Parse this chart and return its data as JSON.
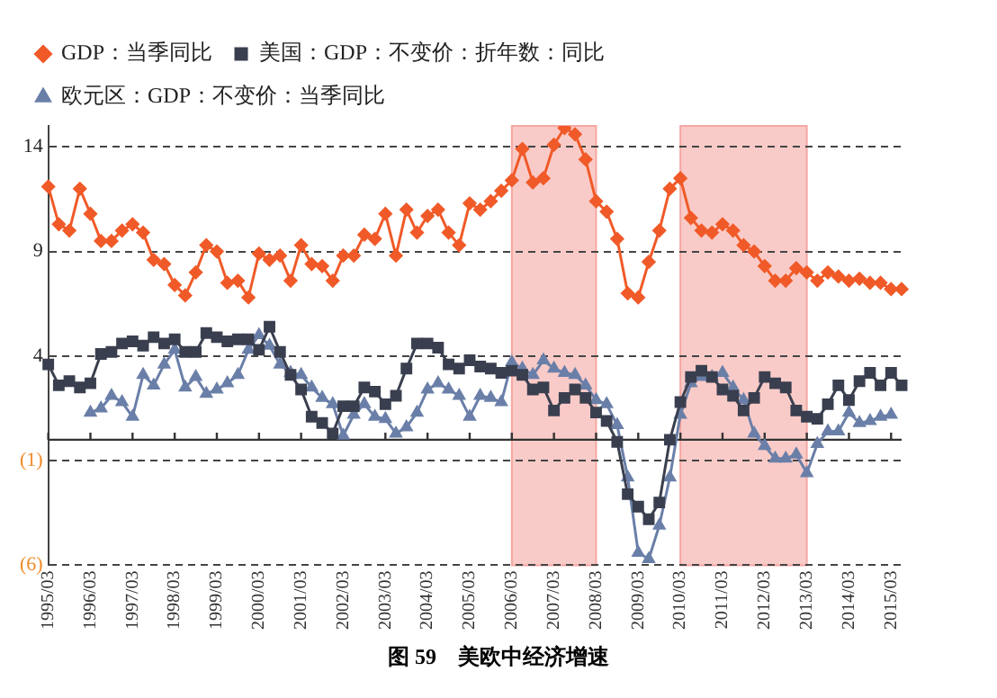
{
  "chart_data": {
    "type": "line",
    "annotations": [
      "图 59　美欧中经济增速"
    ],
    "categories": [
      "1995/03",
      null,
      null,
      null,
      "1996/03",
      null,
      null,
      null,
      "1997/03",
      null,
      null,
      null,
      "1998/03",
      null,
      null,
      null,
      "1999/03",
      null,
      null,
      null,
      "2000/03",
      null,
      null,
      null,
      "2001/03",
      null,
      null,
      null,
      "2002/03",
      null,
      null,
      null,
      "2003/03",
      null,
      null,
      null,
      "2004/03",
      null,
      null,
      null,
      "2005/03",
      null,
      null,
      null,
      "2006/03",
      null,
      null,
      null,
      "2007/03",
      null,
      null,
      null,
      "2008/03",
      null,
      null,
      null,
      "2009/03",
      null,
      null,
      null,
      "2010/03",
      null,
      null,
      null,
      "2011/03",
      null,
      null,
      null,
      "2012/03",
      null,
      null,
      null,
      "2013/03",
      null,
      null,
      null,
      "2014/03",
      null,
      null,
      null,
      "2015/03",
      null
    ],
    "series": [
      {
        "name": "GDP：当季同比",
        "color": "#f05a28",
        "marker": "diamond",
        "values": [
          12.1,
          10.3,
          10.0,
          12.0,
          10.8,
          9.5,
          9.5,
          10.0,
          10.3,
          9.9,
          8.6,
          8.4,
          7.4,
          6.9,
          8.0,
          9.3,
          9.0,
          7.5,
          7.6,
          6.8,
          8.9,
          8.6,
          8.8,
          7.6,
          9.3,
          8.4,
          8.3,
          7.6,
          8.8,
          8.8,
          9.8,
          9.6,
          10.8,
          8.8,
          11.0,
          9.9,
          10.7,
          11.0,
          9.9,
          9.3,
          11.3,
          11.0,
          11.4,
          11.9,
          12.4,
          13.9,
          12.3,
          12.5,
          14.1,
          14.9,
          14.6,
          13.4,
          11.4,
          10.9,
          9.6,
          7.0,
          6.8,
          8.5,
          10.0,
          12.0,
          12.5,
          10.6,
          10.0,
          9.9,
          10.3,
          10.0,
          9.3,
          9.0,
          8.3,
          7.6,
          7.6,
          8.2,
          8.0,
          7.6,
          8.0,
          7.8,
          7.6,
          7.7,
          7.5,
          7.5,
          7.2,
          7.2
        ]
      },
      {
        "name": "美国：GDP：不变价：折年数：同比",
        "color": "#3a3f4f",
        "marker": "square",
        "values": [
          3.6,
          2.6,
          2.8,
          2.5,
          2.7,
          4.1,
          4.2,
          4.6,
          4.7,
          4.5,
          4.9,
          4.6,
          4.8,
          4.2,
          4.2,
          5.1,
          4.9,
          4.7,
          4.8,
          4.8,
          4.3,
          5.4,
          4.2,
          3.1,
          2.4,
          1.1,
          0.8,
          0.3,
          1.6,
          1.6,
          2.5,
          2.3,
          1.7,
          2.1,
          3.4,
          4.6,
          4.6,
          4.4,
          3.6,
          3.4,
          3.8,
          3.5,
          3.4,
          3.2,
          3.3,
          3.1,
          2.4,
          2.5,
          1.4,
          2.0,
          2.4,
          2.0,
          1.3,
          0.9,
          -0.1,
          -2.6,
          -3.2,
          -3.8,
          -3.0,
          0.0,
          1.8,
          3.0,
          3.3,
          3.0,
          2.4,
          2.1,
          1.4,
          2.0,
          3.0,
          2.7,
          2.5,
          1.4,
          1.1,
          1.0,
          1.7,
          2.6,
          1.9,
          2.8,
          3.2,
          2.6,
          3.2,
          2.6
        ]
      },
      {
        "name": "欧元区：GDP：不变价：当季同比",
        "color": "#6a7fa8",
        "marker": "triangle",
        "values": [
          null,
          null,
          null,
          null,
          1.3,
          1.5,
          2.1,
          1.8,
          1.1,
          3.1,
          2.6,
          3.6,
          4.3,
          2.5,
          3.0,
          2.2,
          2.4,
          2.7,
          3.1,
          4.3,
          5.0,
          4.5,
          3.6,
          3.2,
          3.1,
          2.5,
          2.0,
          1.7,
          0.2,
          1.2,
          1.7,
          1.1,
          1.0,
          0.3,
          0.6,
          1.3,
          2.4,
          2.7,
          2.4,
          2.1,
          1.1,
          2.1,
          2.0,
          1.8,
          3.7,
          3.4,
          3.1,
          3.8,
          3.4,
          3.2,
          3.1,
          2.6,
          1.9,
          1.7,
          0.7,
          -1.8,
          -5.4,
          -5.7,
          -4.1,
          -1.8,
          1.2,
          2.7,
          3.0,
          3.0,
          3.2,
          2.5,
          1.9,
          0.3,
          -0.3,
          -0.9,
          -0.9,
          -0.7,
          -1.6,
          -0.2,
          0.4,
          0.4,
          1.3,
          0.8,
          0.9,
          1.1,
          1.2,
          null
        ]
      }
    ],
    "ylim": [
      -6,
      15
    ],
    "yticks": [
      {
        "value": -6,
        "label": "(6)"
      },
      {
        "value": -1,
        "label": "(1)"
      },
      4,
      9,
      14
    ],
    "grid": "y",
    "legend": "top",
    "line_style": "solid",
    "ref_lines": [
      {
        "axis": "y",
        "value": 0,
        "color": "#333333"
      }
    ],
    "bands": [
      {
        "axis": "x",
        "from": "2006/03",
        "to": "2008/03",
        "color": "#f4a09a"
      },
      {
        "axis": "x",
        "from": "2010/03",
        "to": "2013/03",
        "color": "#f4a09a"
      }
    ]
  }
}
